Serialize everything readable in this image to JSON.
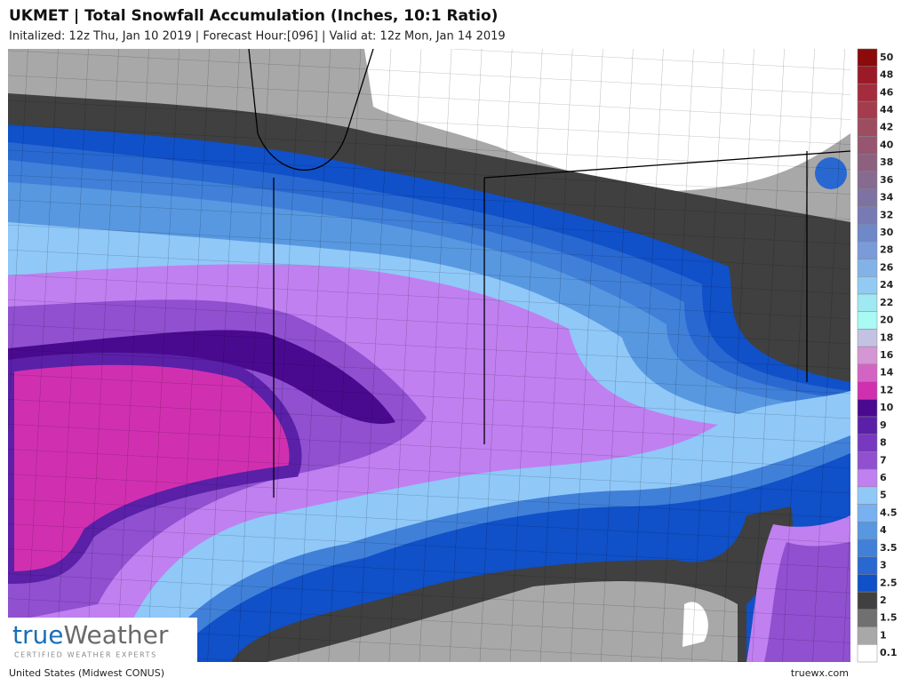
{
  "header": {
    "title": "UKMET | Total Snowfall Accumulation (Inches, 10:1 Ratio)",
    "subtitle": "Initalized: 12z Thu, Jan 10 2019 | Forecast Hour:[096] | Valid at: 12z Mon, Jan 14 2019"
  },
  "legend": {
    "items": [
      {
        "label": 50,
        "color": "#8b0a0a"
      },
      {
        "label": 48,
        "color": "#9c1a28"
      },
      {
        "label": 46,
        "color": "#a42c3c"
      },
      {
        "label": 44,
        "color": "#a43c4e"
      },
      {
        "label": 42,
        "color": "#9e4c60"
      },
      {
        "label": 40,
        "color": "#965670"
      },
      {
        "label": 38,
        "color": "#8e6080"
      },
      {
        "label": 36,
        "color": "#866a90"
      },
      {
        "label": 34,
        "color": "#7e72a2"
      },
      {
        "label": 32,
        "color": "#787ab4"
      },
      {
        "label": 30,
        "color": "#6e88c8"
      },
      {
        "label": 28,
        "color": "#7a9ad8"
      },
      {
        "label": 26,
        "color": "#82b2e8"
      },
      {
        "label": 24,
        "color": "#92caf2"
      },
      {
        "label": 22,
        "color": "#a0e8f2"
      },
      {
        "label": 20,
        "color": "#a8faf2"
      },
      {
        "label": 18,
        "color": "#c4c2e2"
      },
      {
        "label": 16,
        "color": "#d496d4"
      },
      {
        "label": 14,
        "color": "#d464c4"
      },
      {
        "label": 12,
        "color": "#d030b0"
      },
      {
        "label": 10,
        "color": "#4a0a90"
      },
      {
        "label": 9,
        "color": "#5a20a8"
      },
      {
        "label": 8,
        "color": "#7838c0"
      },
      {
        "label": 7,
        "color": "#9050d0"
      },
      {
        "label": 6,
        "color": "#c080f0"
      },
      {
        "label": 5,
        "color": "#90c8f8"
      },
      {
        "label": 4.5,
        "color": "#78b0f0"
      },
      {
        "label": 4,
        "color": "#5898e0"
      },
      {
        "label": 3.5,
        "color": "#4080d8"
      },
      {
        "label": 3,
        "color": "#2868d0"
      },
      {
        "label": 2.5,
        "color": "#1050c8"
      },
      {
        "label": 2,
        "color": "#404040"
      },
      {
        "label": 1.5,
        "color": "#707070"
      },
      {
        "label": 1,
        "color": "#a8a8a8"
      },
      {
        "label": 0.1,
        "color": "#ffffff"
      }
    ]
  },
  "logo": {
    "brand_part1": "true",
    "brand_part2": "Weather",
    "tagline": "CERTIFIED WEATHER EXPERTS"
  },
  "footer": {
    "region": "United States (Midwest CONUS)",
    "site": "truewx.com"
  }
}
